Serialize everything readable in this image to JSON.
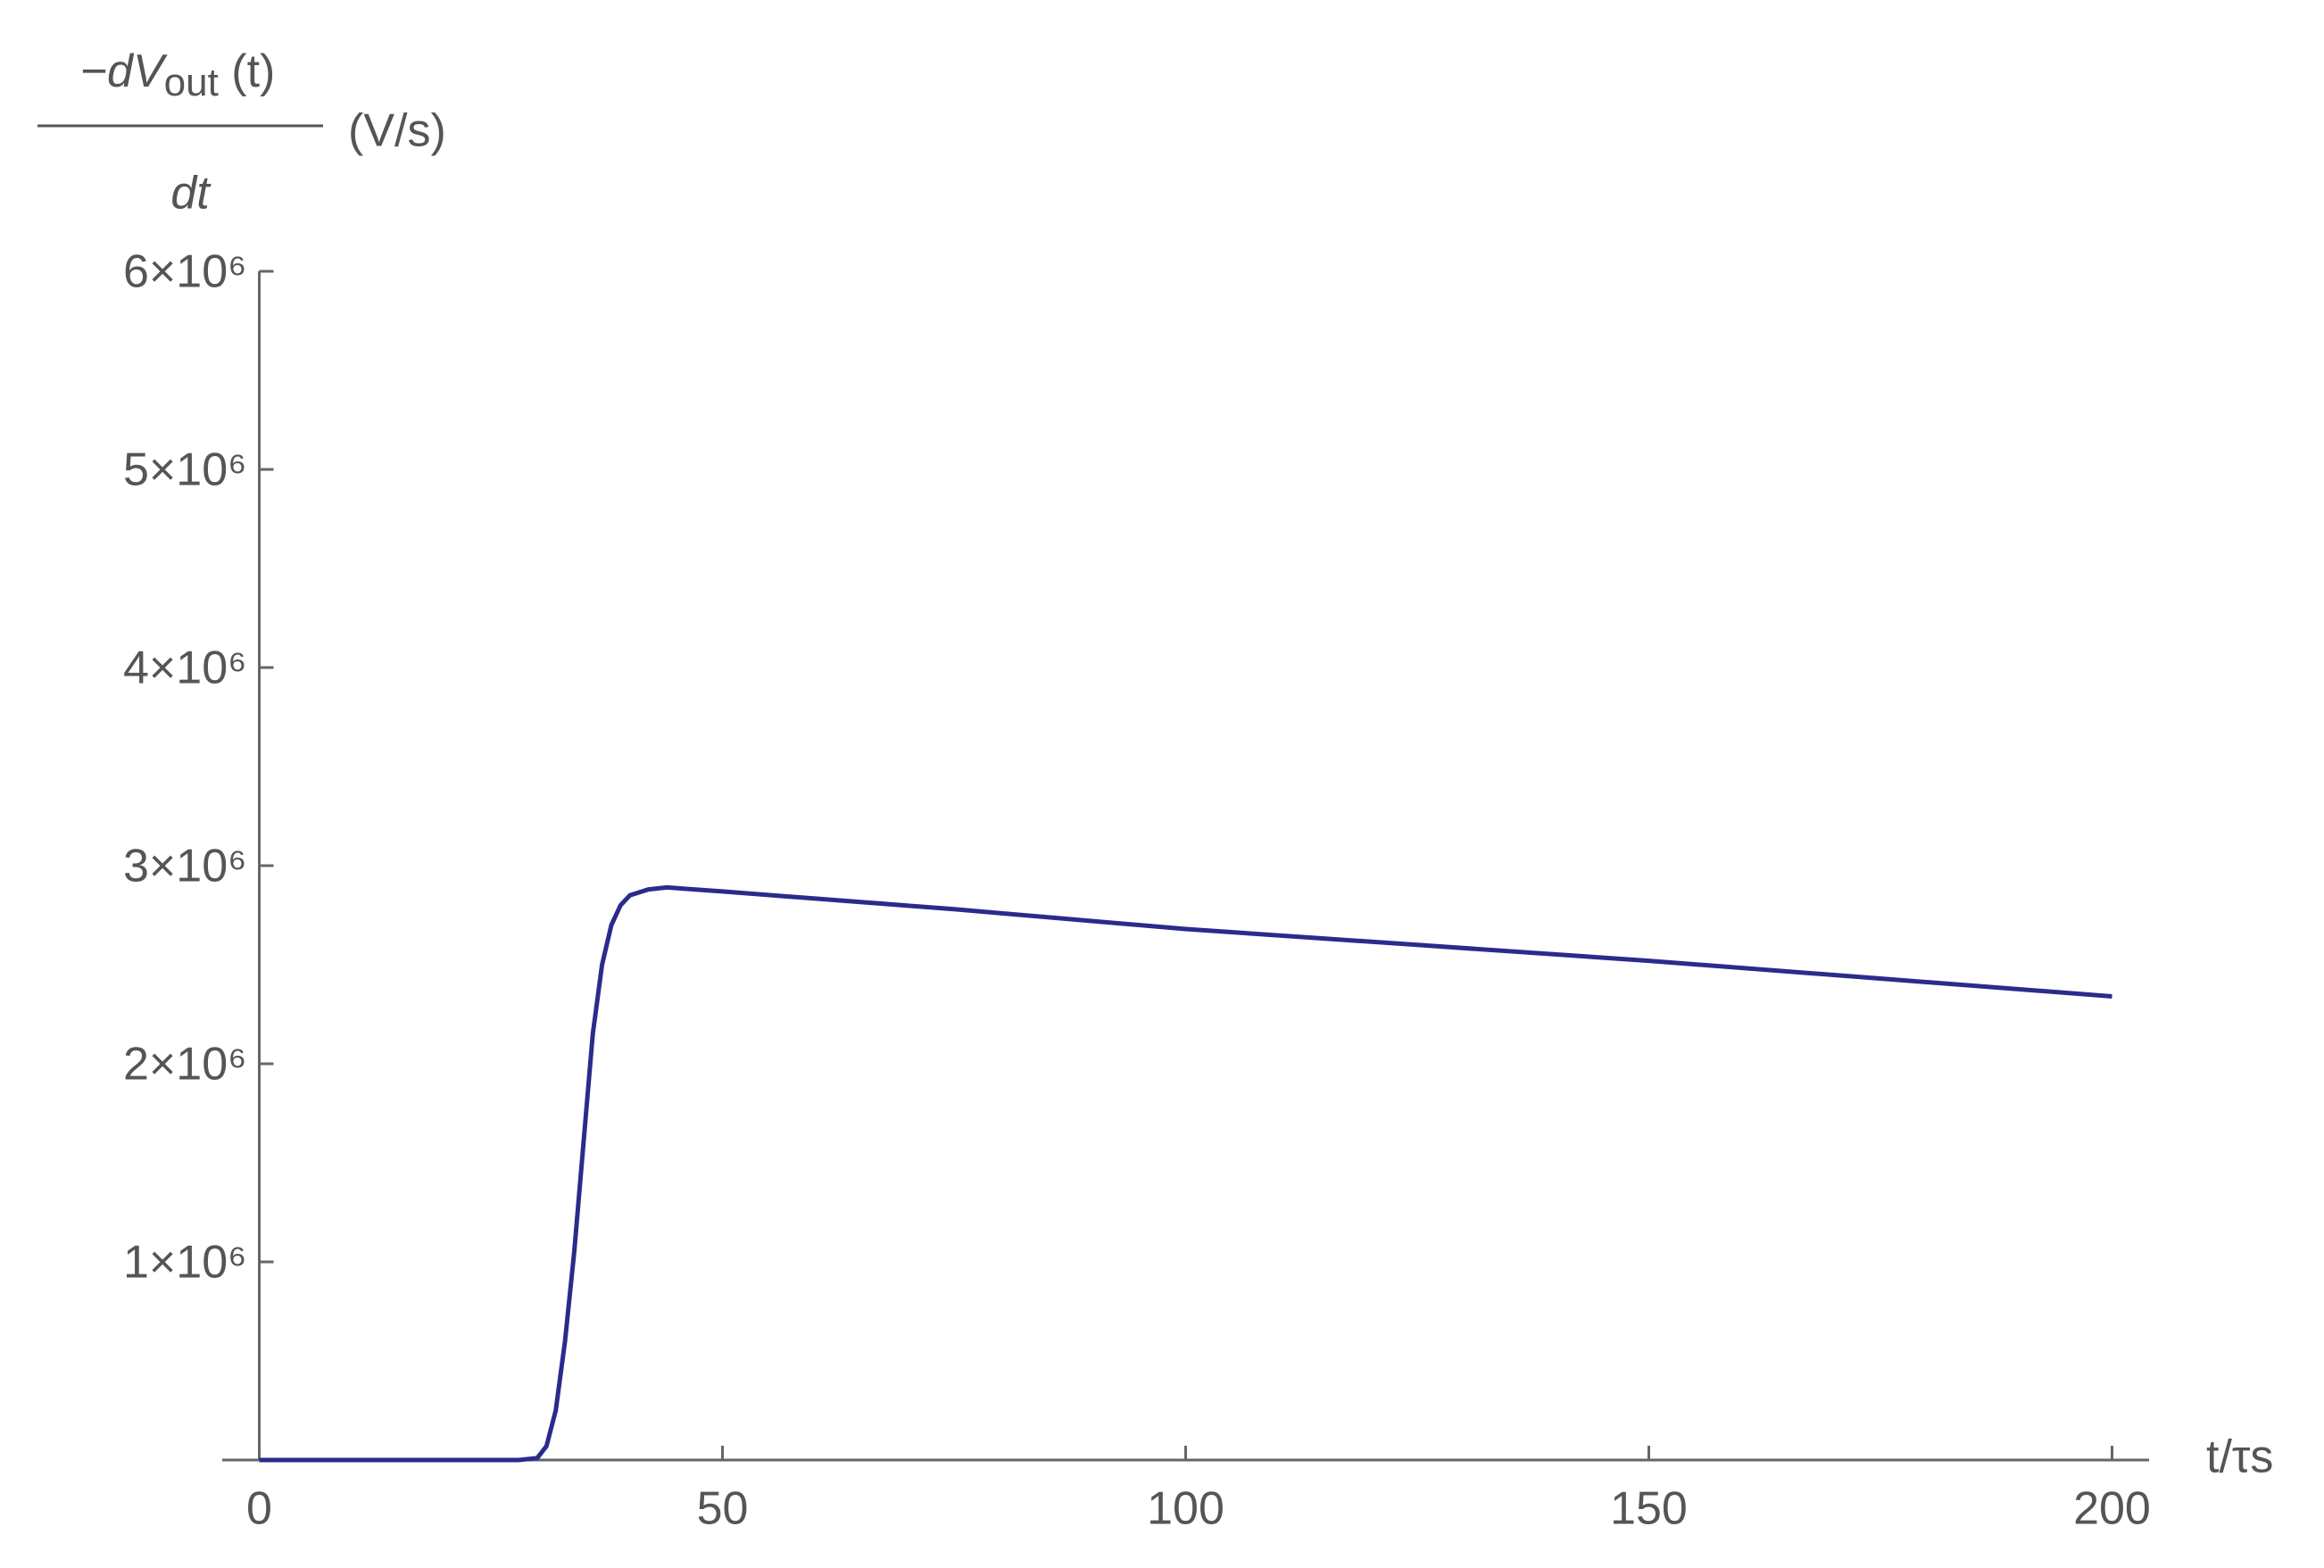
{
  "chart_data": {
    "type": "line",
    "ylabel": {
      "numerator": "−dV",
      "subscript": "out",
      "argument": " (t)",
      "denominator": "dt",
      "unit": "(V/s)"
    },
    "xlabel": "t/τs",
    "x": [
      0,
      10,
      20,
      28,
      30,
      31,
      32,
      33,
      34,
      35,
      36,
      37,
      38,
      39,
      40,
      42,
      44,
      50,
      75,
      100,
      125,
      150,
      175,
      200
    ],
    "series": [
      {
        "color": "#2b2b8c",
        "values": [
          0,
          0,
          0,
          0,
          10000,
          70000,
          250000,
          600000,
          1050000,
          1600000,
          2150000,
          2500000,
          2700000,
          2800000,
          2850000,
          2880000,
          2890000,
          2870000,
          2780000,
          2680000,
          2600000,
          2520000,
          2430000,
          2340000
        ]
      }
    ],
    "xlim": [
      -4,
      204
    ],
    "xticks": [
      0,
      50,
      100,
      150,
      200
    ],
    "ylim": [
      0,
      6000000
    ],
    "yticks": [
      {
        "value": 1000000,
        "label": "1×10⁶"
      },
      {
        "value": 2000000,
        "label": "2×10⁶"
      },
      {
        "value": 3000000,
        "label": "3×10⁶"
      },
      {
        "value": 4000000,
        "label": "4×10⁶"
      },
      {
        "value": 5000000,
        "label": "5×10⁶"
      },
      {
        "value": 6000000,
        "label": "6×10⁶"
      }
    ],
    "grid": false
  }
}
